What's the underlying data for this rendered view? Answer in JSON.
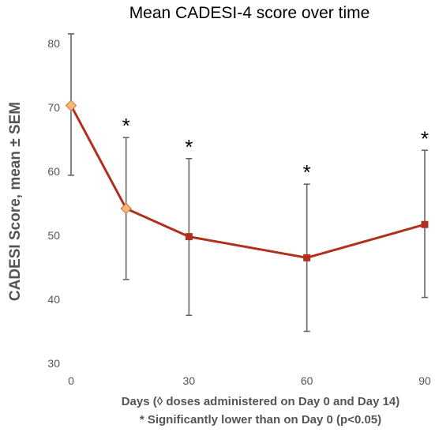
{
  "chart_data": {
    "type": "line",
    "title": "Mean CADESI-4 score over time",
    "ylabel": "CADESI Score, mean ± SEM",
    "xlabel": "Days (◊ doses administered on Day 0 and Day 14)",
    "footnote": "* Significantly lower than on Day 0 (p<0.05)",
    "xlim": [
      0,
      90
    ],
    "ylim": [
      30,
      80
    ],
    "x_ticks": [
      0,
      30,
      60,
      90
    ],
    "y_ticks": [
      30,
      40,
      50,
      60,
      70,
      80
    ],
    "grid": false,
    "series": [
      {
        "x": [
          0,
          14,
          30,
          60,
          90
        ],
        "y": [
          70.3,
          54.2,
          49.8,
          46.5,
          51.7
        ],
        "err_upper": [
          81.5,
          65.3,
          62.0,
          58.0,
          63.3
        ],
        "err_lower": [
          59.4,
          43.1,
          37.5,
          35.0,
          40.3
        ],
        "markers": [
          "diamond",
          "diamond",
          "square",
          "square",
          "square"
        ],
        "significant": [
          false,
          true,
          true,
          true,
          true
        ]
      }
    ],
    "annotation_mark": "*"
  },
  "colors": {
    "line": "#B0301E",
    "diamond_fill": "#F4B87A",
    "diamond_stroke": "#C8742E",
    "square_fill": "#B0301E",
    "error_bar": "#666666",
    "axis_text": "#555555"
  }
}
